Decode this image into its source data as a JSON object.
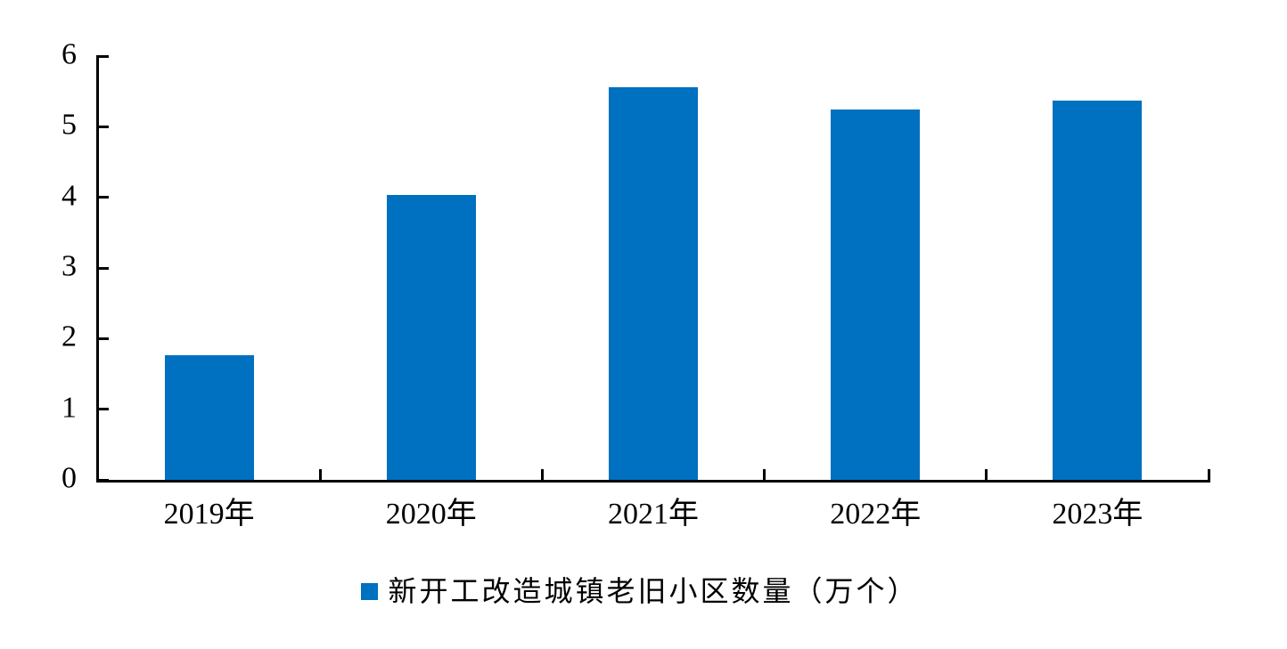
{
  "chart_data": {
    "type": "bar",
    "categories": [
      "2019年",
      "2020年",
      "2021年",
      "2022年",
      "2023年"
    ],
    "values": [
      1.76,
      4.03,
      5.56,
      5.25,
      5.37
    ],
    "series_name": "新开工改造城镇老旧小区数量（万个）",
    "ylim": [
      0,
      6
    ],
    "yticks": [
      0,
      1,
      2,
      3,
      4,
      5,
      6
    ],
    "bar_color": "#0070C0",
    "axis_color": "#000000",
    "text_color": "#000000",
    "background_color": "#FFFFFF",
    "grid": false,
    "legend_position": "bottom"
  }
}
